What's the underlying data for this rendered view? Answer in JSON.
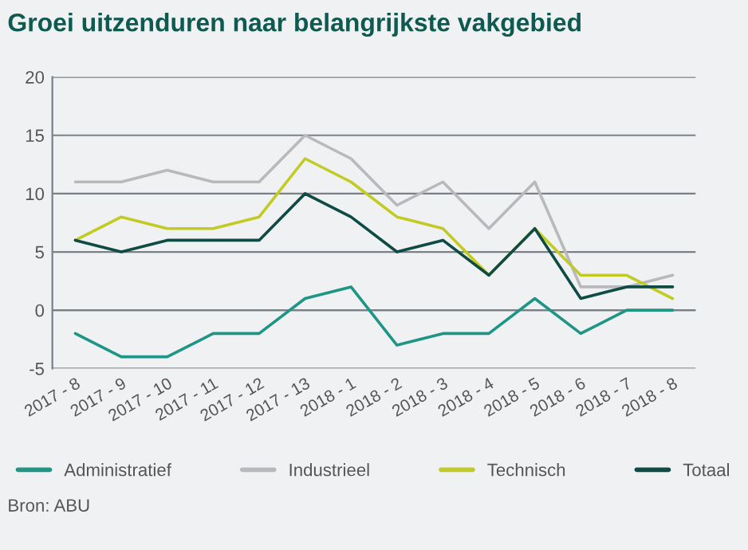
{
  "chart_data": {
    "type": "line",
    "title": "Groei uitzenduren naar belangrijkste vakgebied",
    "categories": [
      "2017 - 8",
      "2017 - 9",
      "2017 - 10",
      "2017 - 11",
      "2017 - 12",
      "2017 - 13",
      "2018 - 1",
      "2018 - 2",
      "2018 - 3",
      "2018 - 4",
      "2018 - 5",
      "2018 - 6",
      "2018 - 7",
      "2018 - 8"
    ],
    "series": [
      {
        "name": "Administratief",
        "color": "#1f9585",
        "values": [
          -2,
          -4,
          -4,
          -2,
          -2,
          1,
          2,
          -3,
          -2,
          -2,
          1,
          -2,
          0,
          0
        ]
      },
      {
        "name": "Industrieel",
        "color": "#b9b9bd",
        "values": [
          11,
          11,
          12,
          11,
          11,
          15,
          13,
          9,
          11,
          7,
          11,
          2,
          2,
          3
        ]
      },
      {
        "name": "Technisch",
        "color": "#c2cb24",
        "values": [
          6,
          8,
          7,
          7,
          8,
          13,
          11,
          8,
          7,
          3,
          7,
          3,
          3,
          1
        ]
      },
      {
        "name": "Totaal",
        "color": "#0f4b45",
        "values": [
          6,
          5,
          6,
          6,
          6,
          10,
          8,
          5,
          6,
          3,
          7,
          1,
          2,
          2
        ]
      }
    ],
    "ylim": [
      -5,
      20
    ],
    "yticks": [
      -5,
      0,
      5,
      10,
      15,
      20
    ],
    "grid": "y",
    "legend": "bottom",
    "marker": "none",
    "line_style": "solid",
    "annotations": [
      "Bron: ABU"
    ]
  }
}
